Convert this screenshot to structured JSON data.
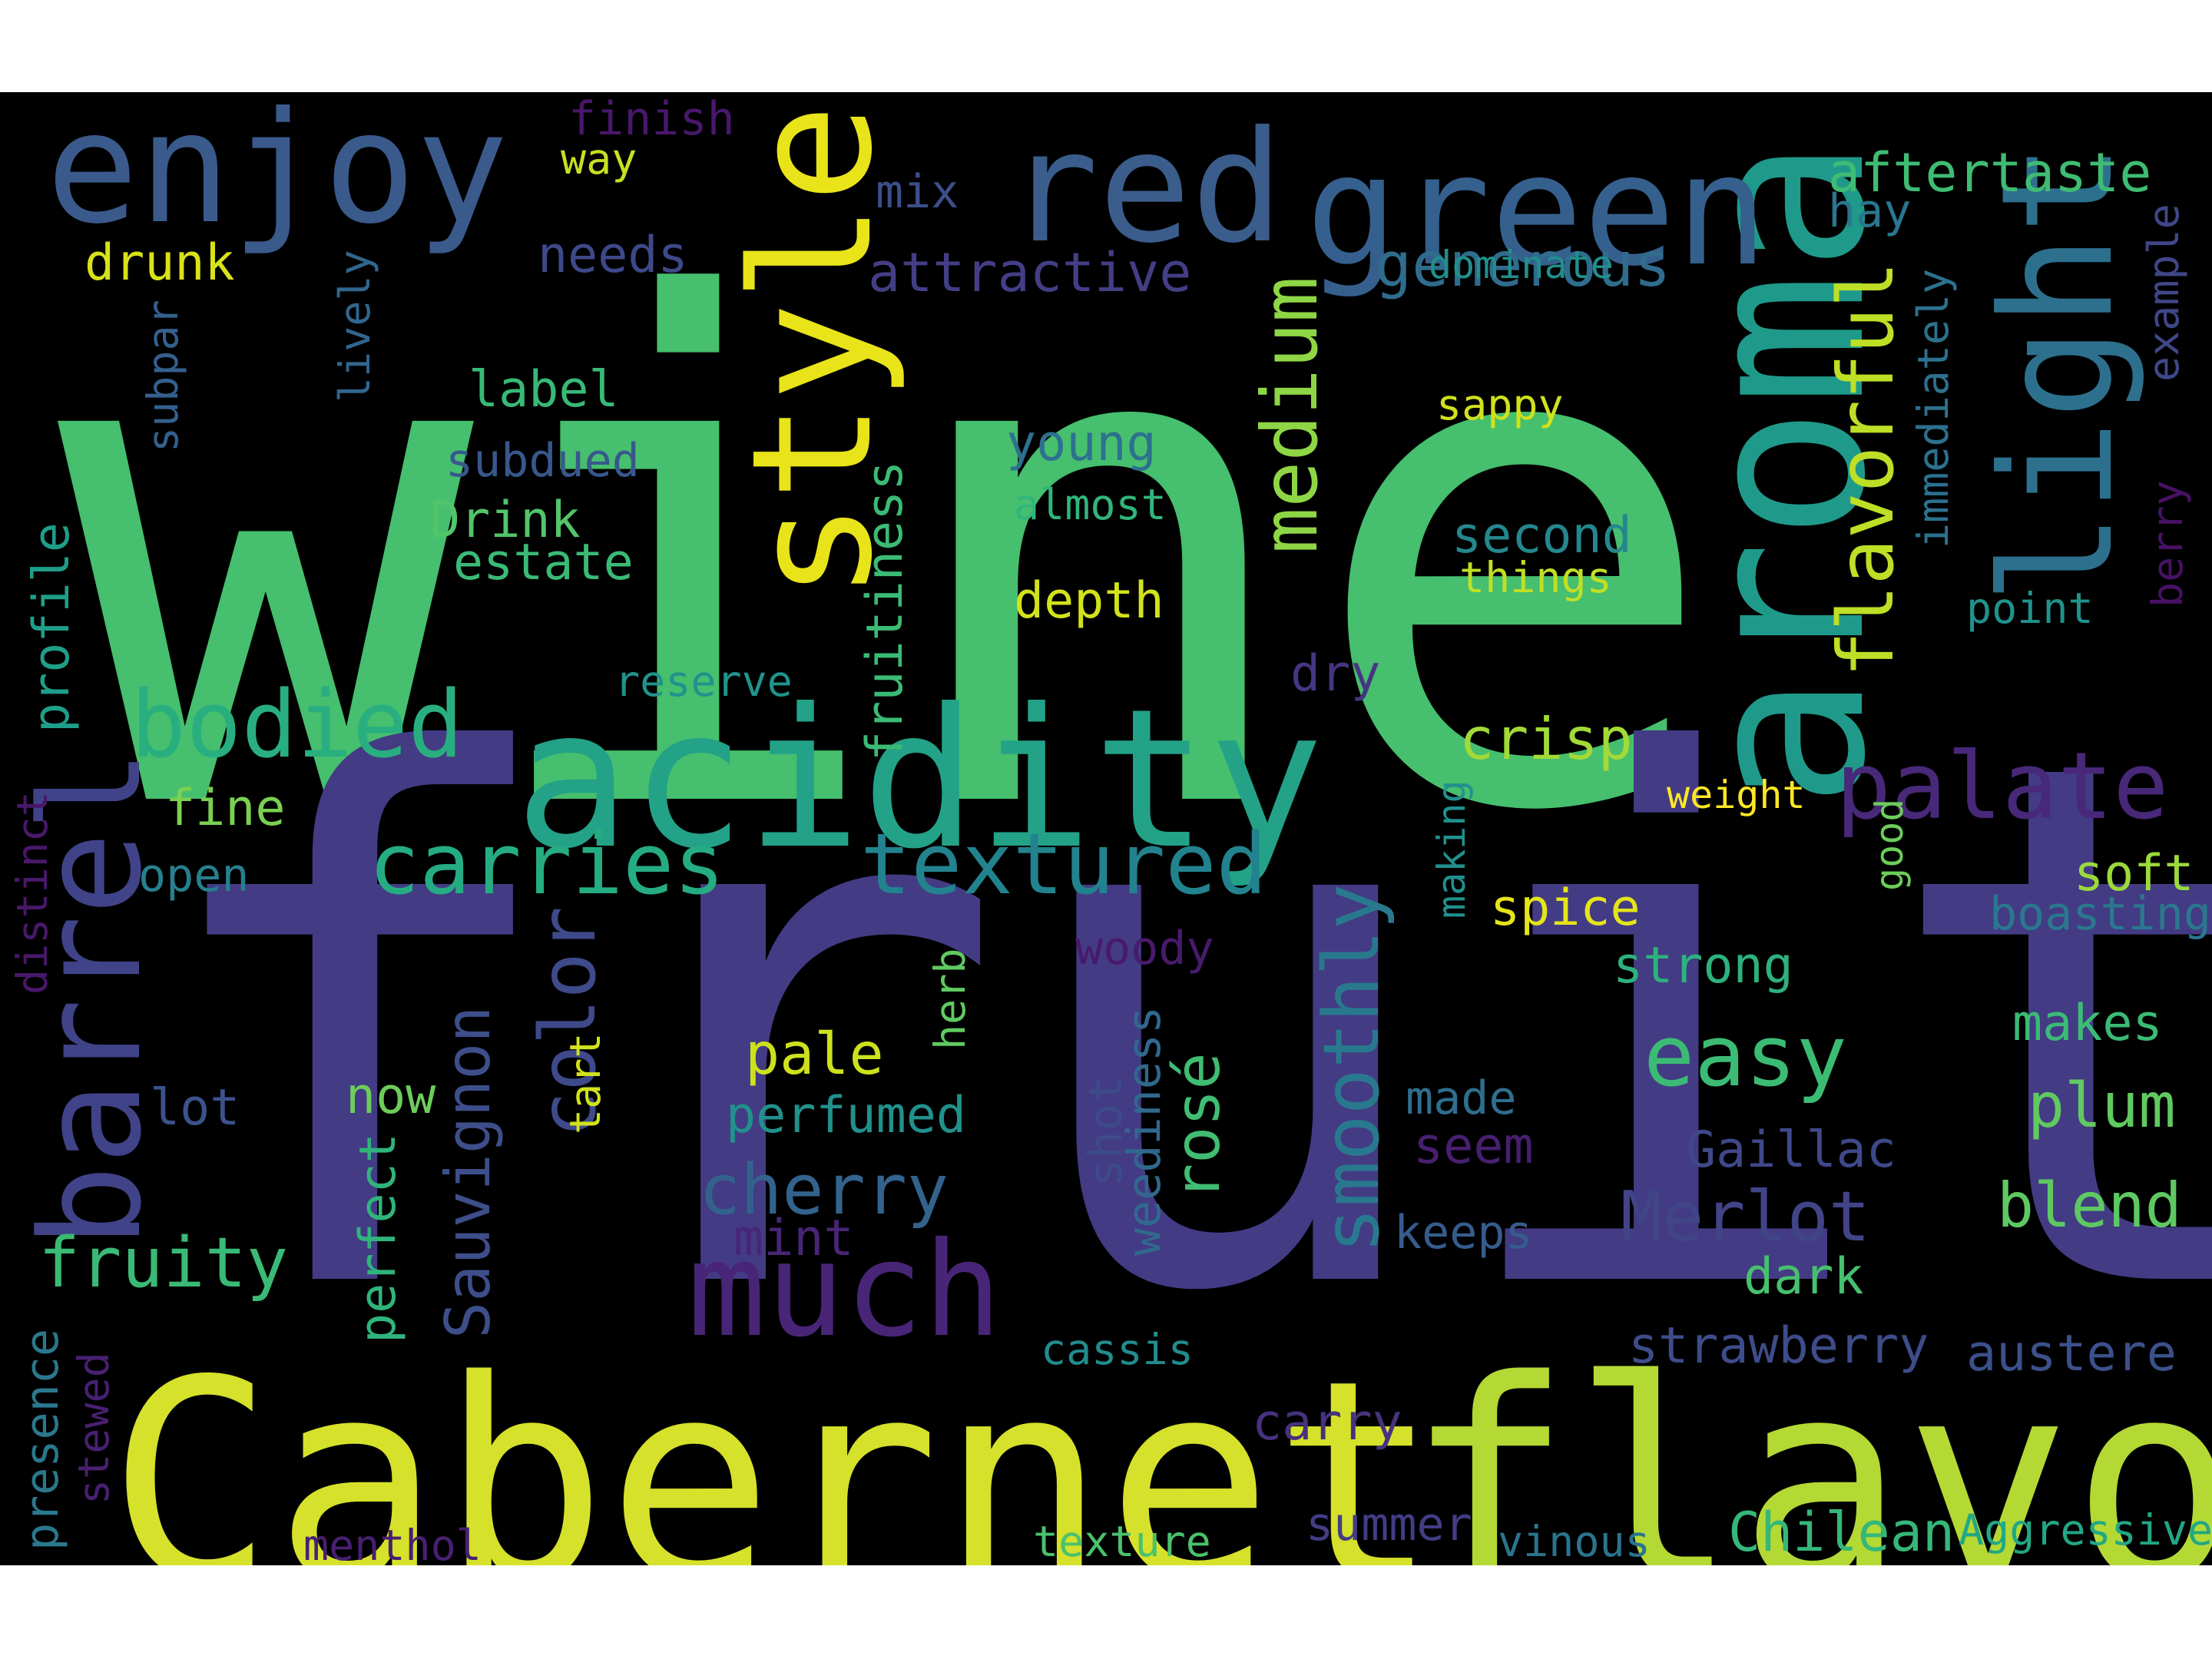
{
  "words": [
    {
      "text": "wine",
      "color": "#46bf6e"
    },
    {
      "text": "fruit",
      "color": "#433b84"
    },
    {
      "text": "Cabernet",
      "color": "#d6e12b"
    },
    {
      "text": "flavor",
      "color": "#b4d934"
    },
    {
      "text": "acidity",
      "color": "#23a287"
    },
    {
      "text": "aroma",
      "color": "#1f9a8a"
    },
    {
      "text": "enjoy",
      "color": "#3a5a8c"
    },
    {
      "text": "red",
      "color": "#3b5d8c"
    },
    {
      "text": "green",
      "color": "#355f8d"
    },
    {
      "text": "style",
      "color": "#e8e419"
    },
    {
      "text": "light",
      "color": "#2d708e"
    },
    {
      "text": "much",
      "color": "#482576"
    },
    {
      "text": "barrel",
      "color": "#404388"
    },
    {
      "text": "bodied",
      "color": "#29af7f"
    },
    {
      "text": "carries",
      "color": "#25ac82"
    },
    {
      "text": "textured",
      "color": "#22838e"
    },
    {
      "text": "palate",
      "color": "#482878"
    },
    {
      "text": "flavorful",
      "color": "#bddf26"
    },
    {
      "text": "medium",
      "color": "#8ed645"
    },
    {
      "text": "smoothly",
      "color": "#29798e"
    },
    {
      "text": "easy",
      "color": "#3cbb75"
    },
    {
      "text": "color",
      "color": "#3e4a89"
    },
    {
      "text": "Merlot",
      "color": "#414487"
    },
    {
      "text": "generous",
      "color": "#2f6c8e"
    },
    {
      "text": "aftertaste",
      "color": "#3fbc73"
    },
    {
      "text": "crisp",
      "color": "#a2da37"
    },
    {
      "text": "cherry",
      "color": "#33638d"
    },
    {
      "text": "fruity",
      "color": "#3aba76"
    },
    {
      "text": "blend",
      "color": "#5ec962"
    },
    {
      "text": "plum",
      "color": "#60ca60"
    },
    {
      "text": "Sauvignon",
      "color": "#3d4e8a"
    },
    {
      "text": "attractive",
      "color": "#433e85"
    },
    {
      "text": "fruitiness",
      "color": "#3bbb75"
    },
    {
      "text": "rosé",
      "color": "#40bd72"
    },
    {
      "text": "Chilean",
      "color": "#35b779"
    },
    {
      "text": "pale",
      "color": "#cde11d"
    },
    {
      "text": "needs",
      "color": "#3e4989"
    },
    {
      "text": "drunk",
      "color": "#d8e219"
    },
    {
      "text": "finish",
      "color": "#48186a"
    },
    {
      "text": "way",
      "color": "#c8e020"
    },
    {
      "text": "mix",
      "color": "#3c4f8a"
    },
    {
      "text": "hay",
      "color": "#2b758e"
    },
    {
      "text": "example",
      "color": "#3f4788"
    },
    {
      "text": "dominate",
      "color": "#218f8d"
    },
    {
      "text": "immediately",
      "color": "#2c718e"
    },
    {
      "text": "sappy",
      "color": "#d0e11c"
    },
    {
      "text": "young",
      "color": "#2d718e"
    },
    {
      "text": "almost",
      "color": "#31b57b"
    },
    {
      "text": "label",
      "color": "#38b977"
    },
    {
      "text": "subdued",
      "color": "#38588c"
    },
    {
      "text": "Drink",
      "color": "#52c569"
    },
    {
      "text": "estate",
      "color": "#3aba76"
    },
    {
      "text": "second",
      "color": "#24878e"
    },
    {
      "text": "things",
      "color": "#c0df25"
    },
    {
      "text": "depth",
      "color": "#d2e21b"
    },
    {
      "text": "point",
      "color": "#20928c"
    },
    {
      "text": "berry",
      "color": "#471164"
    },
    {
      "text": "lively",
      "color": "#31668e"
    },
    {
      "text": "subpar",
      "color": "#34608d"
    },
    {
      "text": "profile",
      "color": "#1f9e89"
    },
    {
      "text": "dry",
      "color": "#453581"
    },
    {
      "text": "reserve",
      "color": "#20938c"
    },
    {
      "text": "weight",
      "color": "#fde725"
    },
    {
      "text": "fine",
      "color": "#7ad151"
    },
    {
      "text": "soft",
      "color": "#9bd93c"
    },
    {
      "text": "good",
      "color": "#6ccd5a"
    },
    {
      "text": "open",
      "color": "#277f8e"
    },
    {
      "text": "distinct",
      "color": "#48186a"
    },
    {
      "text": "spice",
      "color": "#e5e419"
    },
    {
      "text": "boasting",
      "color": "#2a788e"
    },
    {
      "text": "making",
      "color": "#21908d"
    },
    {
      "text": "woody",
      "color": "#481a6c"
    },
    {
      "text": "strong",
      "color": "#2db27d"
    },
    {
      "text": "herb",
      "color": "#60ca60"
    },
    {
      "text": "makes",
      "color": "#3bbb75"
    },
    {
      "text": "lot",
      "color": "#3b528b"
    },
    {
      "text": "now",
      "color": "#6ccd5a"
    },
    {
      "text": "tart",
      "color": "#d2e21b"
    },
    {
      "text": "weediness",
      "color": "#31688e"
    },
    {
      "text": "shot",
      "color": "#3e4a89"
    },
    {
      "text": "made",
      "color": "#2e6e8e"
    },
    {
      "text": "perfumed",
      "color": "#21918c"
    },
    {
      "text": "seem",
      "color": "#481f70"
    },
    {
      "text": "Gaillac",
      "color": "#3f4889"
    },
    {
      "text": "perfect",
      "color": "#2fb47c"
    },
    {
      "text": "keeps",
      "color": "#365c8d"
    },
    {
      "text": "mint",
      "color": "#482576"
    },
    {
      "text": "dark",
      "color": "#46c06f"
    },
    {
      "text": "presence",
      "color": "#2a788e"
    },
    {
      "text": "stewed",
      "color": "#482071"
    },
    {
      "text": "strawberry",
      "color": "#3e4c8a"
    },
    {
      "text": "austere",
      "color": "#3c508b"
    },
    {
      "text": "cassis",
      "color": "#228c8d"
    },
    {
      "text": "carry",
      "color": "#46327e"
    },
    {
      "text": "summer",
      "color": "#433d84"
    },
    {
      "text": "vinous",
      "color": "#2b748e"
    },
    {
      "text": "menthol",
      "color": "#482071"
    },
    {
      "text": "texture",
      "color": "#4ac16d"
    },
    {
      "text": "Aggressive",
      "color": "#22a785"
    }
  ]
}
